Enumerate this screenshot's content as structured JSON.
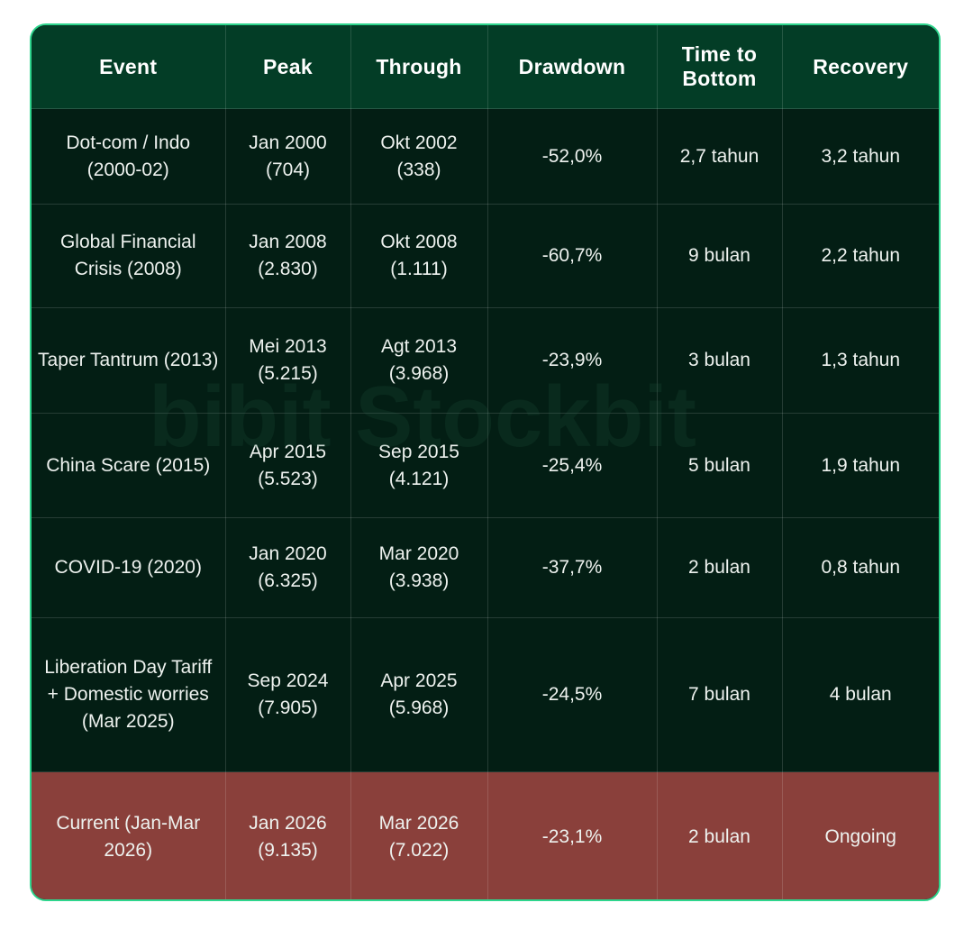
{
  "watermark": "bibit Stockbit",
  "headers": [
    "Event",
    "Peak",
    "Through",
    "Drawdown",
    "Time to Bottom",
    "Recovery"
  ],
  "rows": [
    {
      "event": "Dot-com / Indo (2000-02)",
      "peak": "Jan 2000 (704)",
      "through": "Okt 2002 (338)",
      "drawdown": "-52,0%",
      "time": "2,7 tahun",
      "recovery": "3,2 tahun"
    },
    {
      "event": "Global Financial Crisis (2008)",
      "peak": "Jan 2008 (2.830)",
      "through": "Okt 2008 (1.111)",
      "drawdown": "-60,7%",
      "time": "9 bulan",
      "recovery": "2,2 tahun"
    },
    {
      "event": "Taper Tantrum (2013)",
      "peak": "Mei 2013 (5.215)",
      "through": "Agt 2013 (3.968)",
      "drawdown": "-23,9%",
      "time": "3 bulan",
      "recovery": "1,3 tahun"
    },
    {
      "event": "China Scare (2015)",
      "peak": "Apr 2015 (5.523)",
      "through": "Sep 2015 (4.121)",
      "drawdown": "-25,4%",
      "time": "5 bulan",
      "recovery": "1,9 tahun"
    },
    {
      "event": "COVID-19 (2020)",
      "peak": "Jan 2020 (6.325)",
      "through": "Mar 2020 (3.938)",
      "drawdown": "-37,7%",
      "time": "2 bulan",
      "recovery": "0,8 tahun"
    },
    {
      "event": "Liberation Day Tariff + Domestic worries (Mar 2025)",
      "peak": "Sep 2024 (7.905)",
      "through": "Apr 2025 (5.968)",
      "drawdown": "-24,5%",
      "time": "7 bulan",
      "recovery": "4 bulan"
    },
    {
      "event": "Current (Jan-Mar 2026)",
      "peak": "Jan 2026 (9.135)",
      "through": "Mar 2026 (7.022)",
      "drawdown": "-23,1%",
      "time": "2 bulan",
      "recovery": "Ongoing"
    }
  ]
}
